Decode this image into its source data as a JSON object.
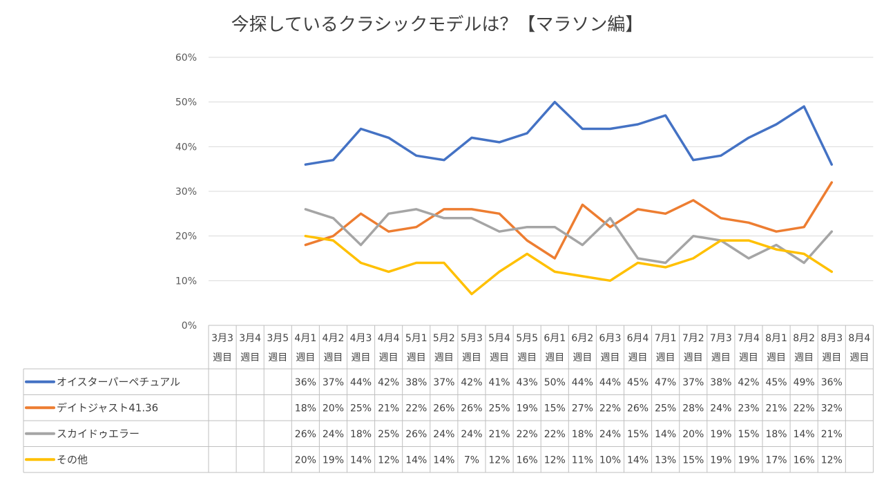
{
  "chart_data": {
    "type": "line",
    "title": "今探しているクラシックモデルは？【マラソン編】",
    "ylim": [
      0,
      60
    ],
    "yticks": [
      "0%",
      "10%",
      "20%",
      "30%",
      "40%",
      "50%",
      "60%"
    ],
    "grid": true,
    "legend": "data-table",
    "categories": [
      [
        "3月3",
        "週目"
      ],
      [
        "3月4",
        "週目"
      ],
      [
        "3月5",
        "週目"
      ],
      [
        "4月1",
        "週目"
      ],
      [
        "4月2",
        "週目"
      ],
      [
        "4月3",
        "週目"
      ],
      [
        "4月4",
        "週目"
      ],
      [
        "5月1",
        "週目"
      ],
      [
        "5月2",
        "週目"
      ],
      [
        "5月3",
        "週目"
      ],
      [
        "5月4",
        "週目"
      ],
      [
        "5月5",
        "週目"
      ],
      [
        "6月1",
        "週目"
      ],
      [
        "6月2",
        "週目"
      ],
      [
        "6月3",
        "週目"
      ],
      [
        "6月4",
        "週目"
      ],
      [
        "7月1",
        "週目"
      ],
      [
        "7月2",
        "週目"
      ],
      [
        "7月3",
        "週目"
      ],
      [
        "7月4",
        "週目"
      ],
      [
        "8月1",
        "週目"
      ],
      [
        "8月2",
        "週目"
      ],
      [
        "8月3",
        "週目"
      ],
      [
        "8月4",
        "週目"
      ]
    ],
    "series": [
      {
        "name": "オイスターパーペチュアル",
        "color": "#4472C4",
        "values": [
          null,
          null,
          null,
          36,
          37,
          44,
          42,
          38,
          37,
          42,
          41,
          43,
          50,
          44,
          44,
          45,
          47,
          37,
          38,
          42,
          45,
          49,
          36,
          null
        ]
      },
      {
        "name": "デイトジャスト41.36",
        "color": "#ED7D31",
        "values": [
          null,
          null,
          null,
          18,
          20,
          25,
          21,
          22,
          26,
          26,
          25,
          19,
          15,
          27,
          22,
          26,
          25,
          28,
          24,
          23,
          21,
          22,
          32,
          null
        ]
      },
      {
        "name": "スカイドゥエラー",
        "color": "#A5A5A5",
        "values": [
          null,
          null,
          null,
          26,
          24,
          18,
          25,
          26,
          24,
          24,
          21,
          22,
          22,
          18,
          24,
          15,
          14,
          20,
          19,
          15,
          18,
          14,
          21,
          null
        ]
      },
      {
        "name": "その他",
        "color": "#FFC000",
        "values": [
          null,
          null,
          null,
          20,
          19,
          14,
          12,
          14,
          14,
          7,
          12,
          16,
          12,
          11,
          10,
          14,
          13,
          15,
          19,
          19,
          17,
          16,
          12,
          null
        ]
      }
    ]
  }
}
